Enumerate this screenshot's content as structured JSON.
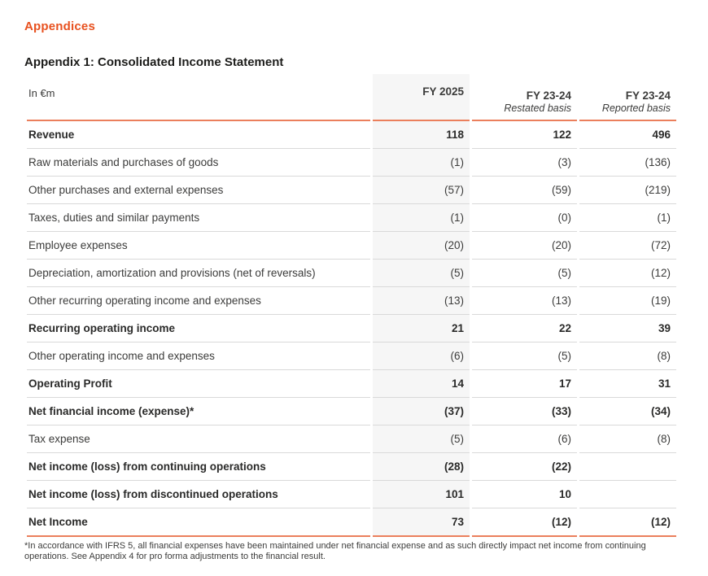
{
  "page": {
    "section_title": "Appendices",
    "table_title": "Appendix 1: Consolidated Income Statement",
    "footnote": "*In accordance with IFRS 5, all financial expenses have been maintained under net financial expense and as such directly impact net income from continuing operations. See Appendix 4 for pro forma adjustments to the financial result."
  },
  "colors": {
    "accent_orange_text": "#E8511F",
    "rule_orange": "#EB7F5C",
    "row_divider_gray": "#D9D9D9",
    "highlight_column_bg": "#F6F6F6",
    "heading_dark": "#1D1D1B",
    "body_text": "#3C3C3B"
  },
  "table": {
    "unit_label": "In €m",
    "columns": [
      {
        "label": "FY 2025",
        "sublabel": "",
        "highlighted": true
      },
      {
        "label": "FY 23-24",
        "sublabel": "Restated basis",
        "highlighted": false
      },
      {
        "label": "FY 23-24",
        "sublabel": "Reported basis",
        "highlighted": false
      }
    ],
    "rows": [
      {
        "label": "Revenue",
        "bold": true,
        "values": [
          "118",
          "122",
          "496"
        ]
      },
      {
        "label": "Raw materials and purchases of goods",
        "bold": false,
        "values": [
          "(1)",
          "(3)",
          "(136)"
        ]
      },
      {
        "label": "Other purchases and external expenses",
        "bold": false,
        "values": [
          "(57)",
          "(59)",
          "(219)"
        ]
      },
      {
        "label": "Taxes, duties and similar payments",
        "bold": false,
        "values": [
          "(1)",
          "(0)",
          "(1)"
        ]
      },
      {
        "label": "Employee expenses",
        "bold": false,
        "values": [
          "(20)",
          "(20)",
          "(72)"
        ]
      },
      {
        "label": "Depreciation, amortization and provisions (net of reversals)",
        "bold": false,
        "values": [
          "(5)",
          "(5)",
          "(12)"
        ]
      },
      {
        "label": "Other recurring operating income and expenses",
        "bold": false,
        "values": [
          "(13)",
          "(13)",
          "(19)"
        ]
      },
      {
        "label": "Recurring operating income",
        "bold": true,
        "values": [
          "21",
          "22",
          "39"
        ]
      },
      {
        "label": "Other operating income and expenses",
        "bold": false,
        "values": [
          "(6)",
          "(5)",
          "(8)"
        ]
      },
      {
        "label": "Operating Profit",
        "bold": true,
        "values": [
          "14",
          "17",
          "31"
        ]
      },
      {
        "label": "Net financial income (expense)*",
        "bold": true,
        "values": [
          "(37)",
          "(33)",
          "(34)"
        ]
      },
      {
        "label": "Tax expense",
        "bold": false,
        "values": [
          "(5)",
          "(6)",
          "(8)"
        ]
      },
      {
        "label": "Net income (loss) from continuing operations",
        "bold": true,
        "values": [
          "(28)",
          "(22)",
          ""
        ]
      },
      {
        "label": "Net income (loss) from discontinued operations",
        "bold": true,
        "values": [
          "101",
          "10",
          ""
        ]
      },
      {
        "label": "Net Income",
        "bold": true,
        "values": [
          "73",
          "(12)",
          "(12)"
        ]
      }
    ]
  }
}
